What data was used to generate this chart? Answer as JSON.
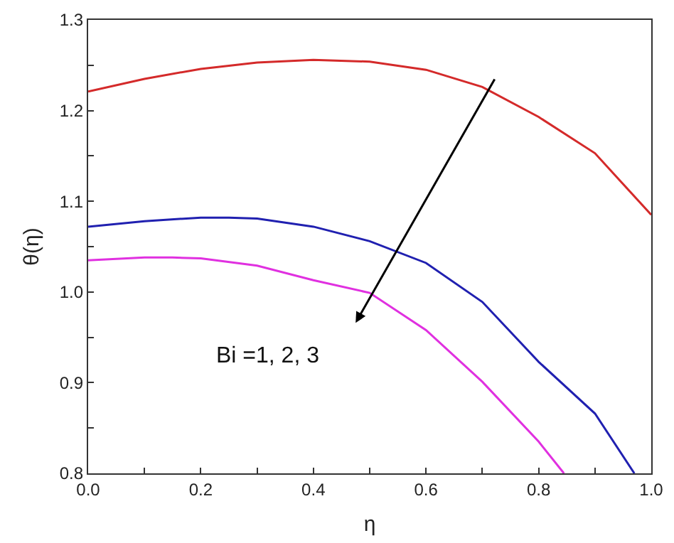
{
  "chart_data": {
    "type": "line",
    "xlabel": "η",
    "ylabel": "θ(η)",
    "xlim": [
      0,
      1.0
    ],
    "ylim": [
      0.8,
      1.3
    ],
    "xticks": [
      {
        "value": 0,
        "label": "0.0"
      },
      {
        "value": 0.1,
        "label": null
      },
      0.2,
      {
        "value": 0.3,
        "label": null
      },
      0.4,
      {
        "value": 0.5,
        "label": null
      },
      0.6,
      {
        "value": 0.7,
        "label": null
      },
      0.8,
      {
        "value": 0.9,
        "label": null
      },
      {
        "value": 1.0,
        "label": "1.0"
      }
    ],
    "yticks": [
      0.8,
      {
        "value": 0.85,
        "label": null
      },
      0.9,
      {
        "value": 0.95,
        "label": null
      },
      {
        "value": 1.0,
        "label": "1.0"
      },
      {
        "value": 1.05,
        "label": null
      },
      1.1,
      {
        "value": 1.15,
        "label": null
      },
      1.2,
      {
        "value": 1.25,
        "label": null
      },
      1.3
    ],
    "marker": "none",
    "line_style": "solid",
    "series": [
      {
        "color": "#d42a2a",
        "x": [
          0,
          0.1,
          0.2,
          0.3,
          0.4,
          0.5,
          0.6,
          0.7,
          0.8,
          0.9,
          1.0
        ],
        "values": [
          1.221,
          1.235,
          1.246,
          1.253,
          1.256,
          1.254,
          1.245,
          1.226,
          1.193,
          1.153,
          1.085
        ]
      },
      {
        "color": "#2020b0",
        "x": [
          0,
          0.1,
          0.2,
          0.25,
          0.3,
          0.4,
          0.5,
          0.6,
          0.7,
          0.8,
          0.9,
          0.97
        ],
        "values": [
          1.072,
          1.078,
          1.082,
          1.082,
          1.081,
          1.072,
          1.056,
          1.032,
          0.989,
          0.923,
          0.866,
          0.8
        ]
      },
      {
        "color": "#e030e0",
        "x": [
          0,
          0.1,
          0.15,
          0.2,
          0.3,
          0.4,
          0.5,
          0.6,
          0.7,
          0.8,
          0.845
        ],
        "values": [
          1.035,
          1.038,
          1.038,
          1.037,
          1.029,
          1.013,
          0.999,
          0.958,
          0.901,
          0.835,
          0.8
        ]
      }
    ],
    "annotations": [
      "Bi =1, 2, 3"
    ]
  }
}
